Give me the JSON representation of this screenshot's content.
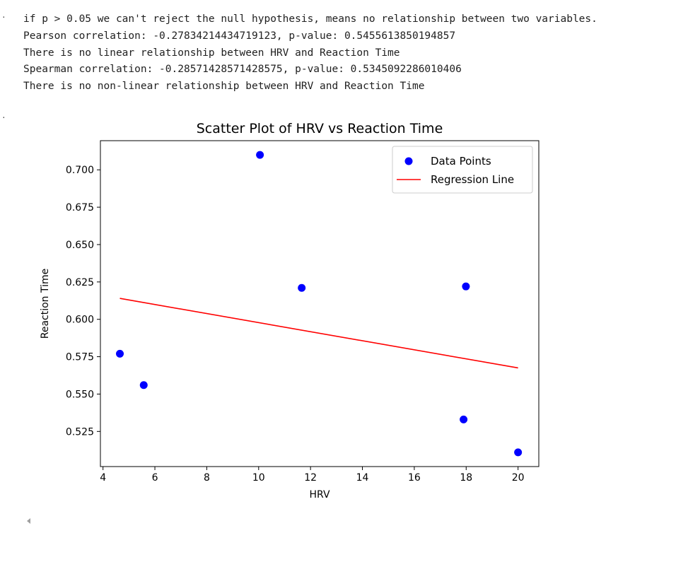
{
  "output": {
    "lines": [
      "if p > 0.05 we can't reject the null hypothesis, means no relationship between two variables.",
      "Pearson correlation: -0.27834214434719123, p-value: 0.5455613850194857",
      "There is no linear relationship between HRV and Reaction Time",
      "Spearman correlation: -0.28571428571428575, p-value: 0.5345092286010406",
      "There is no non-linear relationship between HRV and Reaction Time"
    ]
  },
  "chart_data": {
    "type": "scatter",
    "title": "Scatter Plot of HRV vs Reaction Time",
    "xlabel": "HRV",
    "ylabel": "Reaction Time",
    "xlim": [
      3.9,
      20.8
    ],
    "ylim": [
      0.5015,
      0.7195
    ],
    "xticks": [
      4,
      6,
      8,
      10,
      12,
      14,
      16,
      18,
      20
    ],
    "xtick_labels": [
      "4",
      "6",
      "8",
      "10",
      "12",
      "14",
      "16",
      "18",
      "20"
    ],
    "yticks": [
      0.525,
      0.55,
      0.575,
      0.6,
      0.625,
      0.65,
      0.675,
      0.7
    ],
    "ytick_labels": [
      "0.525",
      "0.550",
      "0.575",
      "0.600",
      "0.625",
      "0.650",
      "0.675",
      "0.700"
    ],
    "grid": false,
    "legend_position": "top-right",
    "series": [
      {
        "name": "Data Points",
        "kind": "scatter",
        "color": "#0000ff",
        "x": [
          4.65,
          5.57,
          10.05,
          11.66,
          17.9,
          17.99,
          20.0
        ],
        "y": [
          0.577,
          0.556,
          0.71,
          0.621,
          0.533,
          0.622,
          0.511
        ]
      },
      {
        "name": "Regression Line",
        "kind": "line",
        "color": "#ff0000",
        "x": [
          4.65,
          20.0
        ],
        "y": [
          0.614,
          0.5675
        ]
      }
    ]
  }
}
